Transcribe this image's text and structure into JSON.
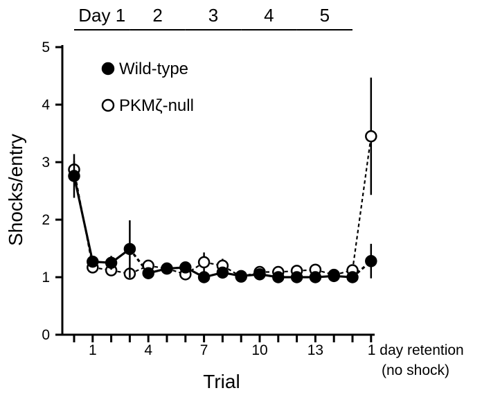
{
  "chart_data": {
    "type": "line",
    "title": "",
    "xlabel": "Trial",
    "ylabel": "Shocks/entry",
    "ylim": [
      0,
      5
    ],
    "y_ticks": [
      "0",
      "1",
      "2",
      "3",
      "4",
      "5"
    ],
    "x_ticks": [
      {
        "pos": 1,
        "label": "1"
      },
      {
        "pos": 4,
        "label": "4"
      },
      {
        "pos": 7,
        "label": "7"
      },
      {
        "pos": 10,
        "label": "10"
      },
      {
        "pos": 13,
        "label": "13"
      },
      {
        "pos": 16,
        "label": "1 day retention"
      }
    ],
    "x_note": "(no shock)",
    "days": [
      {
        "label": "Day 1",
        "start": 0,
        "end": 3
      },
      {
        "label": "2",
        "start": 3,
        "end": 6
      },
      {
        "label": "3",
        "start": 6,
        "end": 9
      },
      {
        "label": "4",
        "start": 9,
        "end": 12
      },
      {
        "label": "5",
        "start": 12,
        "end": 15
      }
    ],
    "legend_position": "top-left",
    "series": [
      {
        "name": "Wild-type",
        "marker": "filled",
        "x": [
          0,
          1,
          2,
          3,
          4,
          5,
          6,
          7,
          8,
          9,
          10,
          11,
          12,
          13,
          14,
          15,
          16
        ],
        "values": [
          2.76,
          1.27,
          1.25,
          1.49,
          1.07,
          1.15,
          1.17,
          1.0,
          1.08,
          1.02,
          1.05,
          1.0,
          1.0,
          1.0,
          1.02,
          1.0,
          1.28
        ],
        "error": [
          0.38,
          0.1,
          0.12,
          0.5,
          0.07,
          0.06,
          0.1,
          0.06,
          0.08,
          0.05,
          0.06,
          0.05,
          0.05,
          0.05,
          0.05,
          0.04,
          0.3
        ]
      },
      {
        "name": "PKMζ-null",
        "marker": "open",
        "x": [
          0,
          1,
          2,
          3,
          4,
          5,
          6,
          7,
          8,
          9,
          10,
          11,
          12,
          13,
          14,
          15,
          16
        ],
        "values": [
          2.87,
          1.17,
          1.12,
          1.06,
          1.2,
          1.15,
          1.05,
          1.26,
          1.2,
          1.01,
          1.09,
          1.09,
          1.11,
          1.13,
          1.04,
          1.12,
          3.45
        ],
        "error": [
          0.15,
          0.1,
          0.08,
          0.06,
          0.1,
          0.08,
          0.07,
          0.17,
          0.12,
          0.06,
          0.06,
          0.07,
          0.08,
          0.07,
          0.06,
          0.07,
          1.02
        ]
      }
    ]
  }
}
